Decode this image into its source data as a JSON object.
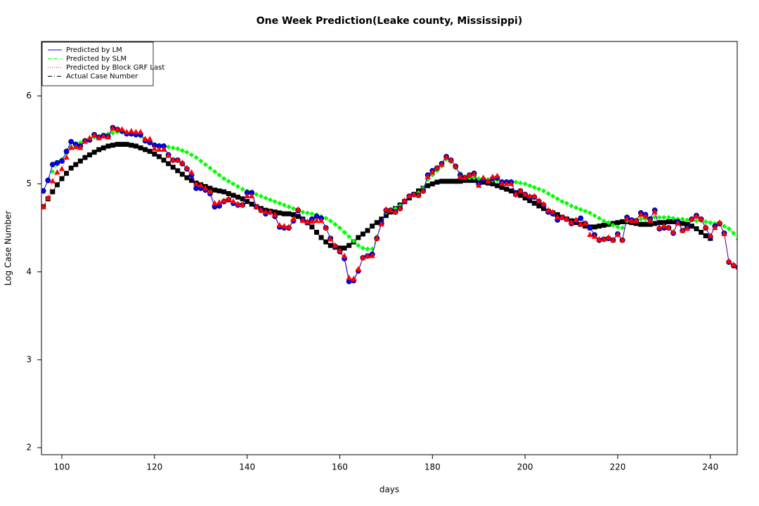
{
  "chart_data": {
    "type": "line",
    "title": "One Week Prediction(Leake county, Mississippi)",
    "x_label": "days",
    "y_label": "Log Case Number",
    "xlim": [
      95.6,
      245.8
    ],
    "ylim": [
      1.92,
      6.62
    ],
    "xticks": [
      100,
      120,
      140,
      160,
      180,
      200,
      220,
      240
    ],
    "yticks": [
      2,
      3,
      4,
      5,
      6
    ],
    "legend": "top-left",
    "x": [
      96,
      97,
      98,
      99,
      100,
      101,
      102,
      103,
      104,
      105,
      106,
      107,
      108,
      109,
      110,
      111,
      112,
      113,
      114,
      115,
      116,
      117,
      118,
      119,
      120,
      121,
      122,
      123,
      124,
      125,
      126,
      127,
      128,
      129,
      130,
      131,
      132,
      133,
      134,
      135,
      136,
      137,
      138,
      139,
      140,
      141,
      142,
      143,
      144,
      145,
      146,
      147,
      148,
      149,
      150,
      151,
      152,
      153,
      154,
      155,
      156,
      157,
      158,
      159,
      160,
      161,
      162,
      163,
      164,
      165,
      166,
      167,
      168,
      169,
      170,
      171,
      172,
      173,
      174,
      175,
      176,
      177,
      178,
      179,
      180,
      181,
      182,
      183,
      184,
      185,
      186,
      187,
      188,
      189,
      190,
      191,
      192,
      193,
      194,
      195,
      196,
      197,
      198,
      199,
      200,
      201,
      202,
      203,
      204,
      205,
      206,
      207,
      208,
      209,
      210,
      211,
      212,
      213,
      214,
      215,
      216,
      217,
      218,
      219,
      220,
      221,
      222,
      223,
      224,
      225,
      226,
      227,
      228,
      229,
      230,
      231,
      232,
      233,
      234,
      235,
      236,
      237,
      238,
      239,
      240,
      241,
      242,
      243,
      244,
      245,
      246
    ],
    "series": [
      {
        "name": "Actual Case Number",
        "color": "#000000",
        "marker": "square",
        "dash": "6 3 1 3",
        "values": [
          4.74,
          4.83,
          4.91,
          4.99,
          5.06,
          5.12,
          5.18,
          5.22,
          5.26,
          5.3,
          5.33,
          5.36,
          5.39,
          5.41,
          5.43,
          5.44,
          5.45,
          5.45,
          5.45,
          5.44,
          5.43,
          5.41,
          5.39,
          5.37,
          5.34,
          5.31,
          5.27,
          5.23,
          5.19,
          5.15,
          5.11,
          5.07,
          5.04,
          5.01,
          4.99,
          4.97,
          4.95,
          4.93,
          4.92,
          4.91,
          4.89,
          4.87,
          4.85,
          4.83,
          4.8,
          4.77,
          4.74,
          4.72,
          4.7,
          4.69,
          4.68,
          4.67,
          4.66,
          4.66,
          4.65,
          4.63,
          4.6,
          4.56,
          4.51,
          4.45,
          4.39,
          4.34,
          4.3,
          4.28,
          4.27,
          4.27,
          4.3,
          4.34,
          4.39,
          4.43,
          4.47,
          4.52,
          4.56,
          4.6,
          4.64,
          4.68,
          4.72,
          4.76,
          4.8,
          4.84,
          4.88,
          4.92,
          4.95,
          4.98,
          5.0,
          5.02,
          5.03,
          5.03,
          5.03,
          5.03,
          5.03,
          5.04,
          5.04,
          5.04,
          5.03,
          5.02,
          5.01,
          5.0,
          4.98,
          4.96,
          4.94,
          4.92,
          4.9,
          4.87,
          4.84,
          4.81,
          4.78,
          4.75,
          4.72,
          4.69,
          4.67,
          4.65,
          4.62,
          4.6,
          4.58,
          4.56,
          4.54,
          4.52,
          4.51,
          4.51,
          4.52,
          4.53,
          4.54,
          4.55,
          4.56,
          4.57,
          4.57,
          4.56,
          4.55,
          4.54,
          4.54,
          4.54,
          4.55,
          4.56,
          4.56,
          4.57,
          4.57,
          4.56,
          4.55,
          4.54,
          4.52,
          4.49,
          4.45,
          4.41,
          4.38,
          null,
          null,
          null,
          null,
          null,
          null
        ]
      },
      {
        "name": "Predicted by SLM",
        "color": "#00ff00",
        "marker": "diamond",
        "dash": "5 4",
        "values": [
          4.92,
          5.04,
          5.14,
          5.22,
          5.28,
          5.35,
          5.42,
          5.45,
          5.47,
          5.49,
          5.51,
          5.53,
          5.54,
          5.55,
          5.57,
          5.58,
          5.59,
          5.59,
          5.58,
          5.57,
          5.56,
          5.54,
          5.51,
          5.48,
          5.45,
          5.44,
          5.43,
          5.42,
          5.41,
          5.4,
          5.38,
          5.36,
          5.33,
          5.3,
          5.26,
          5.22,
          5.18,
          5.14,
          5.1,
          5.06,
          5.03,
          5.0,
          4.97,
          4.94,
          4.92,
          4.9,
          4.88,
          4.86,
          4.84,
          4.82,
          4.8,
          4.78,
          4.76,
          4.74,
          4.72,
          4.7,
          4.68,
          4.67,
          4.66,
          4.65,
          4.63,
          4.61,
          4.58,
          4.54,
          4.5,
          4.45,
          4.4,
          4.35,
          4.3,
          4.27,
          4.26,
          4.26,
          4.4,
          4.55,
          4.68,
          4.7,
          4.72,
          4.75,
          4.8,
          4.85,
          4.88,
          4.9,
          4.95,
          5.05,
          5.1,
          5.15,
          5.2,
          5.28,
          5.25,
          5.18,
          5.12,
          5.08,
          5.07,
          5.07,
          5.06,
          5.05,
          5.05,
          5.04,
          5.04,
          5.03,
          5.03,
          5.03,
          5.02,
          5.01,
          5.0,
          4.98,
          4.96,
          4.94,
          4.92,
          4.89,
          4.86,
          4.83,
          4.8,
          4.78,
          4.75,
          4.73,
          4.71,
          4.69,
          4.67,
          4.64,
          4.61,
          4.58,
          4.56,
          4.53,
          4.51,
          4.5,
          4.58,
          4.59,
          4.59,
          4.6,
          4.6,
          4.61,
          4.62,
          4.62,
          4.62,
          4.62,
          4.61,
          4.6,
          4.6,
          4.59,
          4.59,
          4.58,
          4.58,
          4.57,
          4.56,
          4.55,
          4.54,
          4.52,
          4.49,
          4.44,
          4.37
        ]
      },
      {
        "name": "Predicted by LM",
        "color": "#0000ff",
        "marker": "circle",
        "dash": "",
        "values": [
          4.92,
          5.04,
          5.22,
          5.24,
          5.26,
          5.37,
          5.48,
          5.45,
          5.43,
          5.49,
          5.5,
          5.56,
          5.53,
          5.55,
          5.54,
          5.64,
          5.62,
          5.6,
          5.57,
          5.57,
          5.56,
          5.56,
          5.49,
          5.47,
          5.44,
          5.43,
          5.43,
          5.33,
          5.27,
          5.27,
          5.23,
          5.17,
          5.1,
          4.95,
          4.95,
          4.93,
          4.89,
          4.74,
          4.75,
          4.8,
          4.82,
          4.78,
          4.76,
          4.76,
          4.9,
          4.9,
          4.74,
          4.7,
          4.66,
          4.68,
          4.63,
          4.51,
          4.5,
          4.5,
          4.58,
          4.7,
          4.59,
          4.56,
          4.6,
          4.63,
          4.61,
          4.5,
          4.38,
          4.29,
          4.23,
          4.15,
          3.89,
          3.9,
          4.01,
          4.16,
          4.18,
          4.2,
          4.38,
          4.55,
          4.7,
          4.7,
          4.68,
          4.72,
          4.8,
          4.86,
          4.88,
          4.87,
          4.92,
          5.1,
          5.15,
          5.18,
          5.23,
          5.31,
          5.27,
          5.2,
          5.1,
          5.07,
          5.1,
          5.12,
          5.0,
          5.05,
          5.02,
          5.06,
          5.07,
          5.02,
          5.02,
          5.02,
          4.88,
          4.92,
          4.88,
          4.85,
          4.85,
          4.8,
          4.76,
          4.68,
          4.66,
          4.59,
          4.62,
          4.6,
          4.55,
          4.58,
          4.61,
          4.55,
          4.5,
          4.42,
          4.36,
          4.37,
          4.38,
          4.36,
          4.43,
          4.36,
          4.62,
          4.59,
          4.58,
          4.67,
          4.65,
          4.6,
          4.7,
          4.49,
          4.5,
          4.5,
          4.44,
          4.57,
          4.47,
          4.5,
          4.6,
          4.64,
          4.6,
          4.5,
          4.4,
          4.52,
          4.55,
          4.44,
          4.11,
          4.07,
          4.05
        ]
      },
      {
        "name": "Predicted by Block GRF Last",
        "color": "#ff0000",
        "marker": "triangle",
        "dash": "1 2",
        "values": [
          4.74,
          4.84,
          5.03,
          5.13,
          5.17,
          5.3,
          5.41,
          5.42,
          5.41,
          5.48,
          5.52,
          5.55,
          5.52,
          5.54,
          5.53,
          5.63,
          5.62,
          5.62,
          5.59,
          5.6,
          5.59,
          5.59,
          5.51,
          5.51,
          5.4,
          5.39,
          5.39,
          5.32,
          5.27,
          5.27,
          5.24,
          5.18,
          5.13,
          5.0,
          4.98,
          4.95,
          4.91,
          4.78,
          4.79,
          4.81,
          4.83,
          4.8,
          4.77,
          4.76,
          4.86,
          4.86,
          4.74,
          4.7,
          4.68,
          4.68,
          4.65,
          4.53,
          4.52,
          4.51,
          4.6,
          4.71,
          4.58,
          4.57,
          4.57,
          4.58,
          4.58,
          4.5,
          4.37,
          4.3,
          4.24,
          4.18,
          3.93,
          3.92,
          4.03,
          4.16,
          4.18,
          4.18,
          4.38,
          4.54,
          4.71,
          4.7,
          4.68,
          4.72,
          4.81,
          4.86,
          4.88,
          4.87,
          4.92,
          5.08,
          5.13,
          5.18,
          5.22,
          5.3,
          5.27,
          5.2,
          5.08,
          5.07,
          5.1,
          5.11,
          4.98,
          5.07,
          5.03,
          5.08,
          5.09,
          5.0,
          5.0,
          5.0,
          4.88,
          4.92,
          4.88,
          4.86,
          4.86,
          4.81,
          4.77,
          4.7,
          4.68,
          4.62,
          4.62,
          4.6,
          4.56,
          4.59,
          4.54,
          4.55,
          4.42,
          4.4,
          4.37,
          4.37,
          4.39,
          4.36,
          4.42,
          4.36,
          4.6,
          4.58,
          4.58,
          4.65,
          4.63,
          4.58,
          4.68,
          4.5,
          4.52,
          4.5,
          4.45,
          4.55,
          4.47,
          4.49,
          4.6,
          4.63,
          4.6,
          4.51,
          4.41,
          4.5,
          4.56,
          4.43,
          4.12,
          4.08,
          4.05
        ]
      }
    ],
    "legend_order": [
      2,
      1,
      3,
      0
    ]
  }
}
